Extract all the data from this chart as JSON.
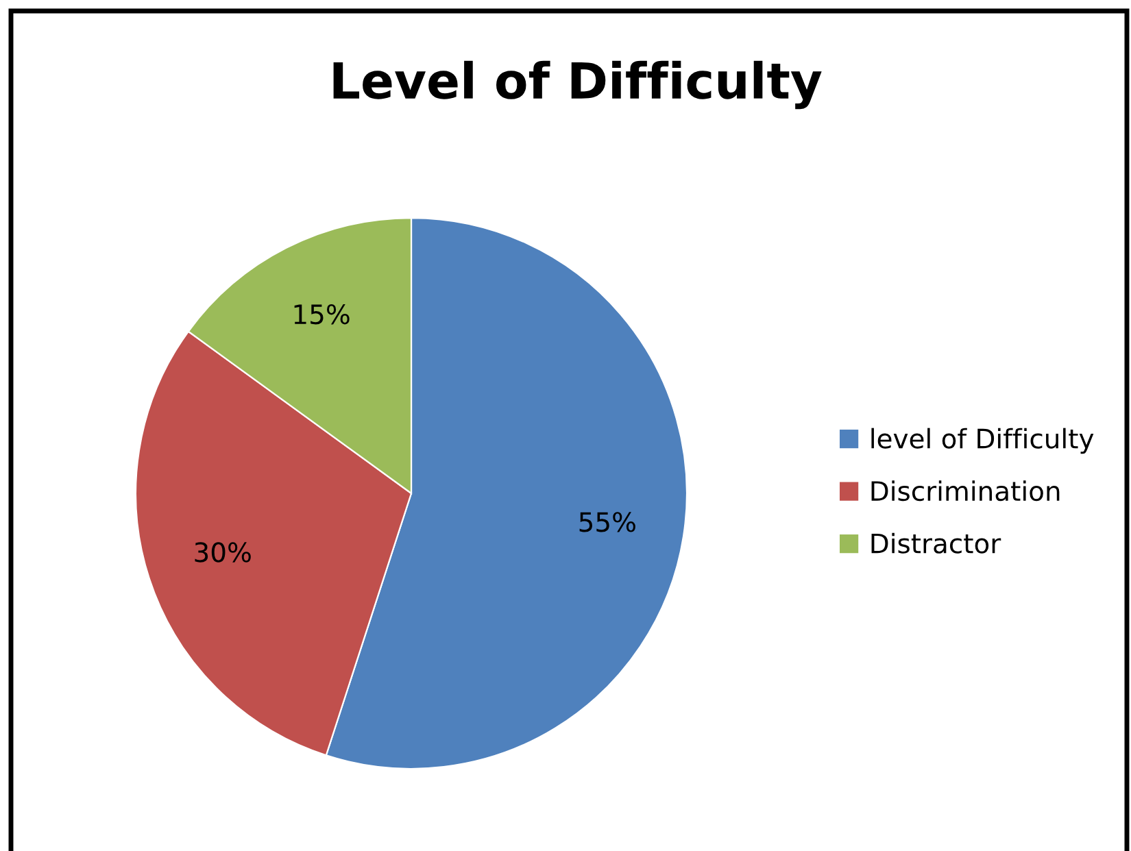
{
  "chart_data": {
    "type": "pie",
    "title": "Level of Difficulty",
    "categories": [
      "level of Difficulty",
      "Discrimination",
      "Distractor"
    ],
    "values": [
      55,
      30,
      15
    ],
    "colors": [
      "#4f81bd",
      "#c0504d",
      "#9bbb59"
    ],
    "value_labels": [
      "55%",
      "30%",
      "15%"
    ],
    "legend": "right"
  }
}
